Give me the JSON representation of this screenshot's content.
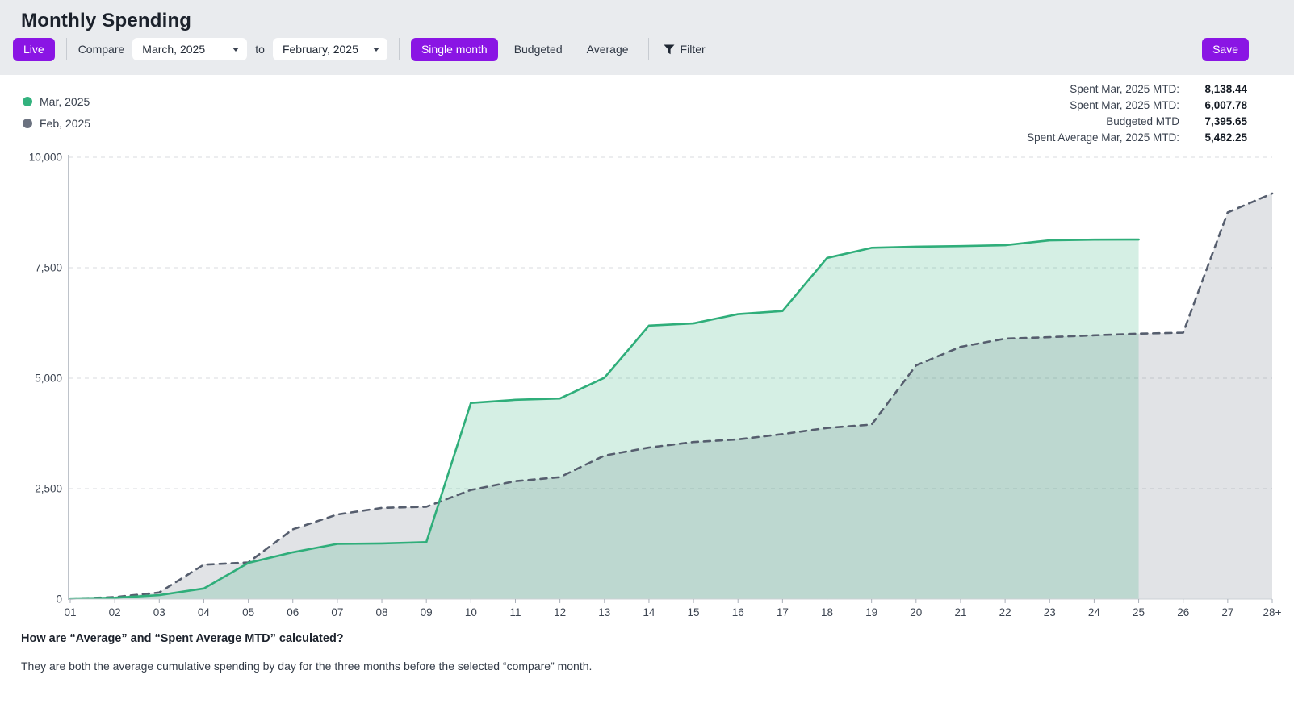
{
  "header": {
    "title": "Monthly Spending"
  },
  "toolbar": {
    "accent_color": "#8a15e4",
    "live_label": "Live",
    "compare_label": "Compare",
    "from_month": "March, 2025",
    "to_word": "to",
    "to_month": "February, 2025",
    "single_month_label": "Single month",
    "budgeted_label": "Budgeted",
    "average_label": "Average",
    "filter_label": "Filter",
    "save_label": "Save"
  },
  "legend": {
    "items": [
      {
        "label": "Mar, 2025",
        "color": "#33b27e"
      },
      {
        "label": "Feb, 2025",
        "color": "#6b7280"
      }
    ]
  },
  "stats": [
    {
      "label": "Spent Mar, 2025 MTD:",
      "value": "8,138.44"
    },
    {
      "label": "Spent Mar, 2025 MTD:",
      "value": "6,007.78"
    },
    {
      "label": "Budgeted MTD",
      "value": "7,395.65"
    },
    {
      "label": "Spent Average Mar, 2025 MTD:",
      "value": "5,482.25"
    }
  ],
  "chart_data": {
    "type": "area",
    "title": "Cumulative monthly spending by day",
    "x_labels": [
      "01",
      "02",
      "03",
      "04",
      "05",
      "06",
      "07",
      "08",
      "09",
      "10",
      "11",
      "12",
      "13",
      "14",
      "15",
      "16",
      "17",
      "18",
      "19",
      "20",
      "21",
      "22",
      "23",
      "24",
      "25",
      "26",
      "27",
      "28+"
    ],
    "ylim": [
      0,
      10000
    ],
    "y_ticks": [
      {
        "v": 0,
        "label": "0"
      },
      {
        "v": 2500,
        "label": "2,500"
      },
      {
        "v": 5000,
        "label": "5,000"
      },
      {
        "v": 7500,
        "label": "7,500"
      },
      {
        "v": 10000,
        "label": "10,000"
      }
    ],
    "grid": "horizontal-dashed",
    "legend_position": "top-left",
    "series": [
      {
        "name": "Feb, 2025",
        "style": "dashed",
        "color": "#565e6e",
        "fill": "rgba(90,98,114,0.18)",
        "values": [
          10,
          45,
          150,
          780,
          830,
          1580,
          1915,
          2065,
          2090,
          2470,
          2670,
          2760,
          3250,
          3430,
          3555,
          3615,
          3735,
          3875,
          3950,
          5290,
          5710,
          5895,
          5930,
          5970,
          6007.78,
          6030,
          8750,
          9180
        ]
      },
      {
        "name": "Mar, 2025",
        "style": "solid",
        "color": "#2fae7a",
        "fill": "rgba(47,174,122,0.20)",
        "values": [
          15,
          30,
          90,
          240,
          820,
          1060,
          1250,
          1260,
          1290,
          4440,
          4510,
          4540,
          5010,
          6190,
          6240,
          6450,
          6520,
          7720,
          7950,
          7975,
          7990,
          8010,
          8120,
          8135,
          8138.44
        ]
      }
    ]
  },
  "footer": {
    "question": "How are “Average” and “Spent Average MTD” calculated?",
    "answer": "They are both the average cumulative spending by day for the three months before the selected “compare” month."
  }
}
